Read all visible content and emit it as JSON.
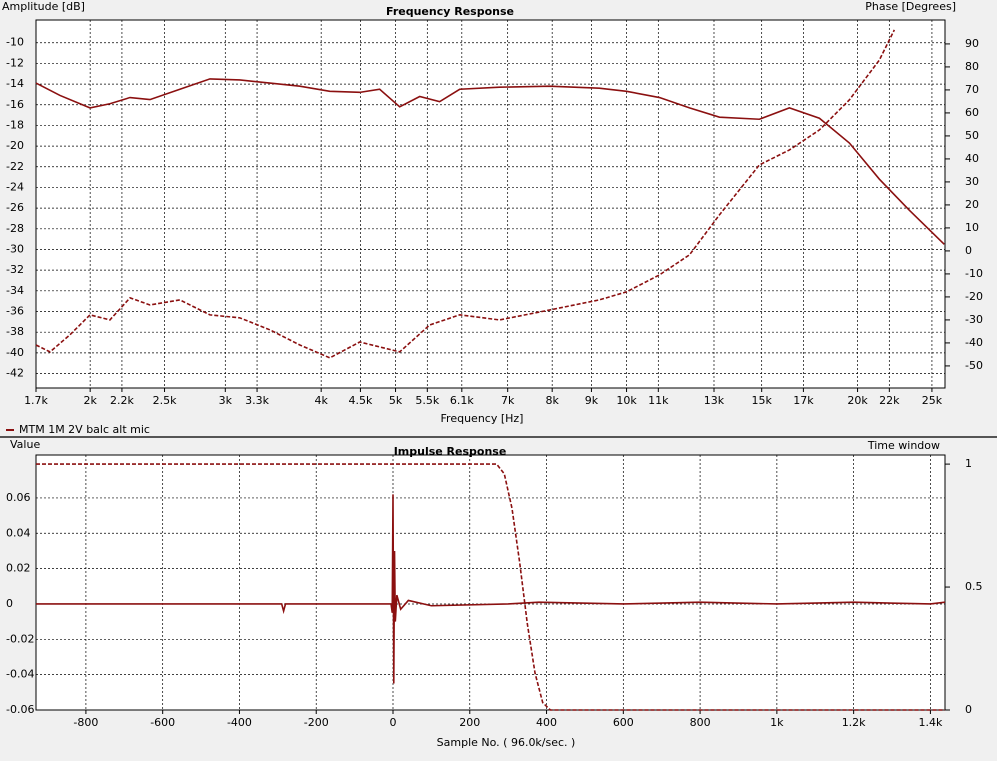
{
  "chart_data": [
    {
      "type": "line",
      "title": "Frequency Response",
      "y_label": "Amplitude [dB]",
      "y2_label": "Phase [Degrees]",
      "x_label": "Frequency [Hz]",
      "xscale": "log",
      "grid": true,
      "legend": "bottom-left",
      "xlim": [
        1700,
        26000
      ],
      "xticks": [
        {
          "value": 1700,
          "label": "1.7k"
        },
        {
          "value": 2000,
          "label": "2k"
        },
        {
          "value": 2200,
          "label": "2.2k"
        },
        {
          "value": 2500,
          "label": "2.5k"
        },
        {
          "value": 3000,
          "label": "3k"
        },
        {
          "value": 3300,
          "label": "3.3k"
        },
        {
          "value": 4000,
          "label": "4k"
        },
        {
          "value": 4500,
          "label": "4.5k"
        },
        {
          "value": 5000,
          "label": "5k"
        },
        {
          "value": 5500,
          "label": "5.5k"
        },
        {
          "value": 6100,
          "label": "6.1k"
        },
        {
          "value": 7000,
          "label": "7k"
        },
        {
          "value": 8000,
          "label": "8k"
        },
        {
          "value": 9000,
          "label": "9k"
        },
        {
          "value": 10000,
          "label": "10k"
        },
        {
          "value": 11000,
          "label": "11k"
        },
        {
          "value": 13000,
          "label": "13k"
        },
        {
          "value": 15000,
          "label": "15k"
        },
        {
          "value": 17000,
          "label": "17k"
        },
        {
          "value": 20000,
          "label": "20k"
        },
        {
          "value": 22000,
          "label": "22k"
        },
        {
          "value": 25000,
          "label": "25k"
        }
      ],
      "ylim": [
        -43.4,
        -7.8
      ],
      "yticks": [
        -10,
        -12,
        -14,
        -16,
        -18,
        -20,
        -22,
        -24,
        -26,
        -28,
        -30,
        -32,
        -34,
        -36,
        -38,
        -40,
        -42
      ],
      "y2lim": [
        -59.6,
        100.4
      ],
      "y2ticks": [
        -50,
        -40,
        -30,
        -20,
        -10,
        0,
        10,
        20,
        30,
        40,
        50,
        60,
        70,
        80,
        90
      ],
      "series": [
        {
          "name": "MTM 1M 2V balc alt mic",
          "color": "#8b1010",
          "line_style": "solid",
          "x": [
            1700,
            1827,
            1999,
            2122,
            2254,
            2393,
            2618,
            2865,
            3134,
            3429,
            3752,
            4105,
            4491,
            4768,
            5063,
            5376,
            5707,
            6061,
            6831,
            7934,
            9214,
            10000,
            11040,
            12079,
            13216,
            14897,
            16301,
            17837,
            19516,
            21353,
            23358,
            25942
          ],
          "values": [
            -13.9,
            -15.1,
            -16.3,
            -15.9,
            -15.3,
            -15.5,
            -14.5,
            -13.5,
            -13.6,
            -13.9,
            -14.2,
            -14.7,
            -14.8,
            -14.5,
            -16.2,
            -15.2,
            -15.7,
            -14.5,
            -14.3,
            -14.2,
            -14.4,
            -14.7,
            -15.3,
            -16.3,
            -17.2,
            -17.4,
            -16.3,
            -17.3,
            -19.7,
            -23.2,
            -26.2,
            -29.5
          ]
        },
        {
          "color": "#8b1010",
          "line_style": "dashed",
          "axis": "y2",
          "x": [
            1700,
            1773,
            1882,
            1999,
            2122,
            2254,
            2393,
            2618,
            2865,
            3134,
            3429,
            3752,
            4105,
            4491,
            5063,
            5539,
            6061,
            6831,
            7934,
            9214,
            10000,
            11040,
            12079,
            13216,
            14897,
            16301,
            17837,
            19516,
            21353,
            22334
          ],
          "values": [
            -40.9,
            -43.9,
            -36.5,
            -27.8,
            -30,
            -20.4,
            -23.5,
            -21.3,
            -27.8,
            -29.1,
            -34.3,
            -40.9,
            -46.5,
            -39.6,
            -43.9,
            -32.2,
            -27.8,
            -30,
            -25.7,
            -21.3,
            -17.8,
            -10.4,
            -1.7,
            15.7,
            37.4,
            43.9,
            52.6,
            65.7,
            83,
            96.1
          ]
        }
      ]
    },
    {
      "type": "line",
      "title": "Impulse Response",
      "y_label": "Value",
      "y2_label": "Time window",
      "x_label": "Sample No. ( 96.0k/sec. )",
      "grid": true,
      "xlim": [
        -930,
        1438
      ],
      "xticks": [
        -800,
        -600,
        -400,
        -200,
        0,
        200,
        400,
        600,
        800,
        {
          "value": 1000,
          "label": "1k"
        },
        {
          "value": 1200,
          "label": "1.2k"
        },
        {
          "value": 1400,
          "label": "1.4k"
        }
      ],
      "ylim": [
        -0.06,
        0.0843
      ],
      "yticks": [
        -0.06,
        -0.04,
        -0.02,
        0,
        0.02,
        0.04,
        0.06
      ],
      "y2lim": [
        0,
        1.037
      ],
      "y2ticks": [
        0,
        0.5,
        1
      ],
      "series": [
        {
          "color": "#8b1010",
          "line_style": "solid",
          "x": [
            -930,
            -290,
            -285,
            -280,
            -5,
            -2,
            0,
            2,
            4,
            6,
            10,
            20,
            40,
            100,
            300,
            380,
            600,
            800,
            1000,
            1200,
            1400,
            1438
          ],
          "values": [
            0,
            0,
            -0.004,
            0,
            0,
            -0.005,
            0.062,
            -0.045,
            0.03,
            -0.01,
            0.005,
            -0.003,
            0.002,
            -0.001,
            0,
            0.001,
            0,
            0.001,
            0,
            0.001,
            0,
            0.001
          ]
        },
        {
          "color": "#8b1010",
          "line_style": "dashed",
          "axis": "y2",
          "x": [
            -930,
            270,
            290,
            310,
            330,
            350,
            370,
            390,
            410,
            1438
          ],
          "values": [
            1,
            1,
            0.96,
            0.82,
            0.6,
            0.35,
            0.15,
            0.03,
            0,
            0
          ]
        }
      ]
    }
  ]
}
